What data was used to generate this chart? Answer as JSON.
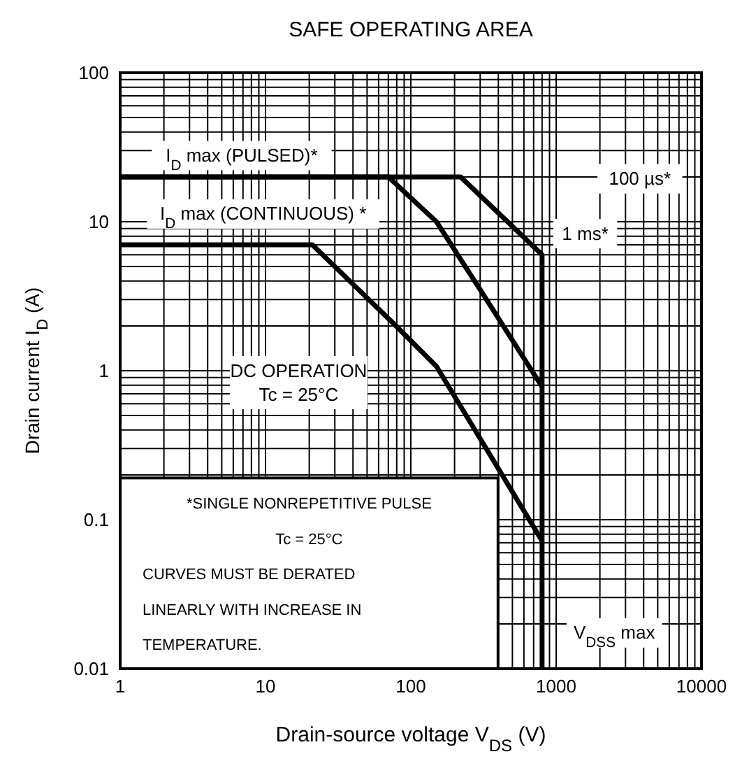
{
  "chart_data": {
    "type": "line",
    "title": "SAFE OPERATING AREA",
    "xlabel": "Drain-source voltage   V$_{DS}$   (V)",
    "ylabel": "Drain current   I$_{D}$   (A)",
    "log": "xy",
    "grid": true,
    "marker": "none",
    "line_style": "solid",
    "xlim": [
      1,
      10000
    ],
    "ylim": [
      0.01,
      100
    ],
    "xticks": [
      1,
      {
        "value": 2,
        "label": null
      },
      {
        "value": 3,
        "label": null
      },
      {
        "value": 4,
        "label": null
      },
      {
        "value": 5,
        "label": null
      },
      {
        "value": 6,
        "label": null
      },
      {
        "value": 7,
        "label": null
      },
      {
        "value": 8,
        "label": null
      },
      {
        "value": 9,
        "label": null
      },
      10,
      {
        "value": 20,
        "label": null
      },
      {
        "value": 30,
        "label": null
      },
      {
        "value": 40,
        "label": null
      },
      {
        "value": 50,
        "label": null
      },
      {
        "value": 60,
        "label": null
      },
      {
        "value": 70,
        "label": null
      },
      {
        "value": 80,
        "label": null
      },
      {
        "value": 90,
        "label": null
      },
      100,
      {
        "value": 200,
        "label": null
      },
      {
        "value": 300,
        "label": null
      },
      {
        "value": 400,
        "label": null
      },
      {
        "value": 500,
        "label": null
      },
      {
        "value": 600,
        "label": null
      },
      {
        "value": 700,
        "label": null
      },
      {
        "value": 800,
        "label": null
      },
      {
        "value": 900,
        "label": null
      },
      1000,
      {
        "value": 2000,
        "label": null
      },
      {
        "value": 3000,
        "label": null
      },
      {
        "value": 4000,
        "label": null
      },
      {
        "value": 5000,
        "label": null
      },
      {
        "value": 6000,
        "label": null
      },
      {
        "value": 7000,
        "label": null
      },
      {
        "value": 8000,
        "label": null
      },
      {
        "value": 9000,
        "label": null
      },
      10000
    ],
    "yticks": [
      0.01,
      {
        "value": 0.02,
        "label": null
      },
      {
        "value": 0.03,
        "label": null
      },
      {
        "value": 0.04,
        "label": null
      },
      {
        "value": 0.05,
        "label": null
      },
      {
        "value": 0.06,
        "label": null
      },
      {
        "value": 0.07,
        "label": null
      },
      {
        "value": 0.08,
        "label": null
      },
      {
        "value": 0.09,
        "label": null
      },
      0.1,
      {
        "value": 0.2,
        "label": null
      },
      {
        "value": 0.3,
        "label": null
      },
      {
        "value": 0.4,
        "label": null
      },
      {
        "value": 0.5,
        "label": null
      },
      {
        "value": 0.6,
        "label": null
      },
      {
        "value": 0.7,
        "label": null
      },
      {
        "value": 0.8,
        "label": null
      },
      {
        "value": 0.9,
        "label": null
      },
      1,
      {
        "value": 2,
        "label": null
      },
      {
        "value": 3,
        "label": null
      },
      {
        "value": 4,
        "label": null
      },
      {
        "value": 5,
        "label": null
      },
      {
        "value": 6,
        "label": null
      },
      {
        "value": 7,
        "label": null
      },
      {
        "value": 8,
        "label": null
      },
      {
        "value": 9,
        "label": null
      },
      10,
      {
        "value": 20,
        "label": null
      },
      {
        "value": 30,
        "label": null
      },
      {
        "value": 40,
        "label": null
      },
      {
        "value": 50,
        "label": null
      },
      {
        "value": 60,
        "label": null
      },
      {
        "value": 70,
        "label": null
      },
      {
        "value": 80,
        "label": null
      },
      {
        "value": 90,
        "label": null
      },
      100
    ],
    "series": [
      {
        "color": "#000000",
        "x": [
          1,
          220,
          800,
          800
        ],
        "values": [
          20,
          20,
          6,
          0.01
        ]
      },
      {
        "color": "#000000",
        "x": [
          1,
          70,
          150,
          300,
          800
        ],
        "values": [
          20,
          20,
          10,
          3.5,
          0.78
        ]
      },
      {
        "color": "#000000",
        "x": [
          1,
          21,
          79,
          150,
          800
        ],
        "values": [
          7,
          7,
          2,
          1.07,
          0.072
        ]
      }
    ],
    "annotations": [
      "I$_{D}$ max (PULSED)*",
      "I$_{D}$ max (CONTINUOUS) *",
      "100 µs*",
      "1 ms*",
      "DC OPERATION\nTc = 25°C",
      "V$_{DSS}$ max",
      "*SINGLE NONREPETITIVE PULSE",
      "Tc = 25°C",
      "CURVES MUST BE DERATED",
      "LINEARLY WITH INCREASE IN",
      "TEMPERATURE."
    ]
  }
}
